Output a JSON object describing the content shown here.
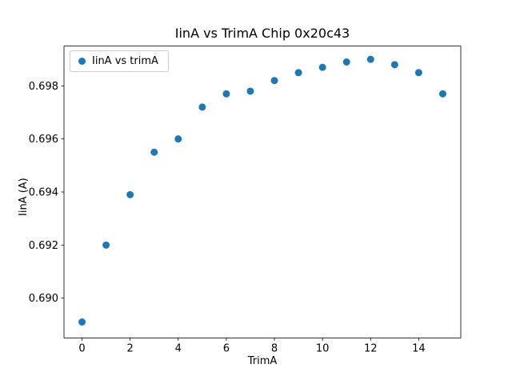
{
  "chart_data": {
    "type": "scatter",
    "title": "IinA vs TrimA Chip 0x20c43",
    "xlabel": "TrimA",
    "ylabel": "IinA (A)",
    "legend": "IinA vs trimA",
    "legend_position": "upper left",
    "marker_color": "#1f77b4",
    "grid": false,
    "x": [
      0,
      1,
      2,
      3,
      4,
      5,
      6,
      7,
      8,
      9,
      10,
      11,
      12,
      13,
      14,
      15
    ],
    "y": [
      0.6891,
      0.692,
      0.6939,
      0.6955,
      0.696,
      0.6972,
      0.6977,
      0.6978,
      0.6982,
      0.6985,
      0.6987,
      0.6989,
      0.699,
      0.6988,
      0.6985,
      0.6977
    ],
    "xlim": [
      -0.75,
      15.75
    ],
    "ylim": [
      0.6885,
      0.6995
    ],
    "xticks": [
      0,
      2,
      4,
      6,
      8,
      10,
      12,
      14
    ],
    "yticks": [
      0.69,
      0.692,
      0.694,
      0.696,
      0.698
    ]
  }
}
